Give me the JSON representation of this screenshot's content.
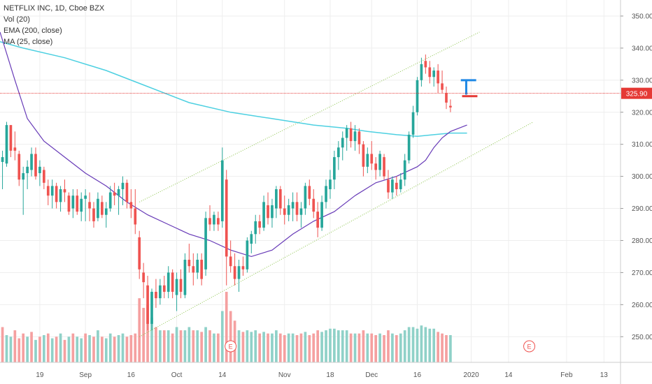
{
  "legend": {
    "title": "NETFLIX INC, 1D, Cboe BZX",
    "vol": "Vol (20)",
    "ema": "EMA (200, close)",
    "ma": "MA (25, close)"
  },
  "price_label": "325.90",
  "colors": {
    "up": "#26a69a",
    "down": "#ef5350",
    "vol_up": "#8fd1c8",
    "vol_down": "#f5a0a0",
    "ema": "#4dd0e1",
    "ma": "#673ab7",
    "trend": "#8bc34a",
    "price_line": "#e53935",
    "grid": "#eeeeee",
    "marker_blue": "#1e88e5",
    "marker_red": "#e53935"
  },
  "chart_data": {
    "type": "candlestick",
    "ylim": [
      242,
      355
    ],
    "yticks": [
      250,
      260,
      270,
      280,
      290,
      300,
      310,
      320,
      330,
      340,
      350
    ],
    "ytick_labels": [
      "250.00",
      "260.00",
      "270.00",
      "280.00",
      "290.00",
      "300.00",
      "310.00",
      "320.00",
      "330.00",
      "340.00",
      "350.00"
    ],
    "xticks": [
      {
        "i": 9,
        "label": "19"
      },
      {
        "i": 20,
        "label": "Sep"
      },
      {
        "i": 31,
        "label": "16"
      },
      {
        "i": 42,
        "label": "Oct"
      },
      {
        "i": 53,
        "label": "14"
      },
      {
        "i": 68,
        "label": "Nov"
      },
      {
        "i": 79,
        "label": "18"
      },
      {
        "i": 89,
        "label": "Dec"
      },
      {
        "i": 100,
        "label": "16"
      },
      {
        "i": 113,
        "label": "2020"
      },
      {
        "i": 122,
        "label": "14"
      },
      {
        "i": 136,
        "label": "Feb"
      },
      {
        "i": 145,
        "label": "13"
      }
    ],
    "index_range": [
      -0.6,
      149
    ],
    "candles": [
      [
        304.5,
        308,
        296,
        306
      ],
      [
        304,
        317,
        303,
        316
      ],
      [
        316,
        316,
        306,
        308
      ],
      [
        309,
        314,
        305,
        308
      ],
      [
        307,
        308,
        297,
        299
      ],
      [
        299,
        303,
        288,
        301
      ],
      [
        301,
        305,
        296,
        303
      ],
      [
        302,
        309,
        300,
        307
      ],
      [
        307,
        309,
        299,
        300
      ],
      [
        301,
        305,
        297,
        303
      ],
      [
        302,
        303,
        296,
        298
      ],
      [
        297,
        299,
        291,
        294
      ],
      [
        294,
        299,
        290,
        297
      ],
      [
        297,
        298,
        290,
        292
      ],
      [
        292,
        297,
        289,
        296
      ],
      [
        296,
        299,
        292,
        295
      ],
      [
        294,
        295,
        288,
        289
      ],
      [
        290,
        296,
        287,
        294
      ],
      [
        294,
        296,
        288,
        289
      ],
      [
        289,
        295,
        286,
        293
      ],
      [
        293,
        296,
        286,
        294
      ],
      [
        292,
        295,
        286,
        290
      ],
      [
        290,
        292,
        284,
        286
      ],
      [
        287,
        295,
        286,
        293
      ],
      [
        292,
        294,
        287,
        288
      ],
      [
        288,
        292,
        284,
        290
      ],
      [
        290,
        297,
        289,
        295
      ],
      [
        295,
        298,
        291,
        294
      ],
      [
        294,
        297,
        288,
        296
      ],
      [
        296,
        300,
        291,
        298
      ],
      [
        298,
        299,
        290,
        292
      ],
      [
        292,
        296,
        287,
        290
      ],
      [
        290,
        296,
        282,
        285
      ],
      [
        281,
        283,
        268,
        271
      ],
      [
        270,
        273,
        262,
        267
      ],
      [
        266,
        269,
        252,
        254
      ],
      [
        254,
        265,
        252,
        264
      ],
      [
        264,
        268,
        259,
        262
      ],
      [
        262,
        268,
        260,
        266
      ],
      [
        266,
        269,
        262,
        264
      ],
      [
        264,
        272,
        262,
        270
      ],
      [
        270,
        271,
        262,
        264
      ],
      [
        263,
        270,
        258,
        268
      ],
      [
        268,
        271,
        262,
        264
      ],
      [
        263,
        276,
        262,
        274
      ],
      [
        274,
        279,
        270,
        272
      ],
      [
        272,
        276,
        266,
        270
      ],
      [
        270,
        276,
        268,
        274
      ],
      [
        274,
        276,
        266,
        268
      ],
      [
        271,
        289,
        269,
        287
      ],
      [
        287,
        291,
        283,
        285
      ],
      [
        285,
        289,
        283,
        288
      ],
      [
        287,
        289,
        283,
        285
      ],
      [
        286,
        309,
        284,
        305
      ],
      [
        299,
        302,
        266,
        275
      ],
      [
        275,
        280,
        270,
        272
      ],
      [
        272,
        276,
        266,
        268
      ],
      [
        268,
        274,
        264,
        272
      ],
      [
        272,
        275,
        269,
        271
      ],
      [
        271,
        281,
        270,
        280
      ],
      [
        279,
        283,
        276,
        282
      ],
      [
        282,
        288,
        279,
        286
      ],
      [
        286,
        288,
        282,
        284
      ],
      [
        284,
        294,
        283,
        292
      ],
      [
        291,
        295,
        285,
        287
      ],
      [
        287,
        293,
        284,
        291
      ],
      [
        290,
        297,
        287,
        296
      ],
      [
        296,
        297,
        288,
        290
      ],
      [
        290,
        294,
        285,
        288
      ],
      [
        288,
        293,
        286,
        291
      ],
      [
        290,
        295,
        286,
        292
      ],
      [
        292,
        295,
        286,
        288
      ],
      [
        288,
        292,
        284,
        290
      ],
      [
        290,
        298,
        288,
        297
      ],
      [
        297,
        299,
        291,
        293
      ],
      [
        293,
        296,
        287,
        289
      ],
      [
        289,
        292,
        281,
        284
      ],
      [
        284,
        294,
        283,
        292
      ],
      [
        292,
        299,
        290,
        297
      ],
      [
        296,
        302,
        293,
        299
      ],
      [
        299,
        308,
        296,
        306
      ],
      [
        306,
        311,
        302,
        309
      ],
      [
        309,
        314,
        305,
        312
      ],
      [
        312,
        316,
        308,
        315
      ],
      [
        315,
        317,
        309,
        311
      ],
      [
        311,
        316,
        308,
        314
      ],
      [
        314,
        315,
        307,
        310
      ],
      [
        310,
        311,
        300,
        303
      ],
      [
        303,
        309,
        301,
        307
      ],
      [
        307,
        311,
        302,
        304
      ],
      [
        304,
        306,
        299,
        302
      ],
      [
        302,
        308,
        300,
        307
      ],
      [
        306,
        307,
        299,
        300
      ],
      [
        299,
        302,
        293,
        295
      ],
      [
        295,
        300,
        293,
        299
      ],
      [
        298,
        300,
        294,
        296
      ],
      [
        296,
        301,
        295,
        299
      ],
      [
        299,
        307,
        297,
        305
      ],
      [
        305,
        314,
        304,
        313
      ],
      [
        313,
        322,
        312,
        320
      ],
      [
        320,
        331,
        319,
        330
      ],
      [
        330,
        337,
        328,
        335
      ],
      [
        336,
        338,
        332,
        334
      ],
      [
        334,
        336,
        329,
        331
      ],
      [
        331,
        334,
        328,
        333
      ],
      [
        333,
        335,
        326,
        329
      ],
      [
        329,
        333,
        326,
        327
      ],
      [
        326,
        328,
        321,
        323
      ],
      [
        322,
        324,
        320,
        321.5
      ]
    ],
    "volumes": [
      [
        253,
        "down"
      ],
      [
        250.5,
        "up"
      ],
      [
        250,
        "up"
      ],
      [
        252,
        "down"
      ],
      [
        249.5,
        "down"
      ],
      [
        251,
        "down"
      ],
      [
        250,
        "up"
      ],
      [
        251.5,
        "down"
      ],
      [
        249,
        "up"
      ],
      [
        250,
        "down"
      ],
      [
        250.5,
        "up"
      ],
      [
        251,
        "down"
      ],
      [
        249.5,
        "up"
      ],
      [
        250,
        "down"
      ],
      [
        251,
        "up"
      ],
      [
        249,
        "down"
      ],
      [
        250,
        "up"
      ],
      [
        251,
        "down"
      ],
      [
        250,
        "up"
      ],
      [
        249.5,
        "up"
      ],
      [
        251,
        "down"
      ],
      [
        250.5,
        "up"
      ],
      [
        250,
        "down"
      ],
      [
        252,
        "up"
      ],
      [
        250,
        "down"
      ],
      [
        249.5,
        "up"
      ],
      [
        251,
        "up"
      ],
      [
        250,
        "down"
      ],
      [
        250.5,
        "up"
      ],
      [
        251,
        "up"
      ],
      [
        250,
        "down"
      ],
      [
        250.5,
        "down"
      ],
      [
        251,
        "down"
      ],
      [
        262,
        "down"
      ],
      [
        259,
        "down"
      ],
      [
        260,
        "down"
      ],
      [
        256,
        "up"
      ],
      [
        253,
        "down"
      ],
      [
        252,
        "up"
      ],
      [
        252,
        "down"
      ],
      [
        252,
        "up"
      ],
      [
        251,
        "down"
      ],
      [
        253,
        "up"
      ],
      [
        252,
        "down"
      ],
      [
        252,
        "up"
      ],
      [
        253,
        "up"
      ],
      [
        252,
        "down"
      ],
      [
        252,
        "up"
      ],
      [
        251.5,
        "down"
      ],
      [
        253,
        "up"
      ],
      [
        252,
        "down"
      ],
      [
        251,
        "up"
      ],
      [
        251,
        "down"
      ],
      [
        258,
        "up"
      ],
      [
        264,
        "down"
      ],
      [
        258,
        "down"
      ],
      [
        255,
        "down"
      ],
      [
        252,
        "up"
      ],
      [
        251.5,
        "down"
      ],
      [
        252,
        "up"
      ],
      [
        251.5,
        "up"
      ],
      [
        252,
        "up"
      ],
      [
        251,
        "down"
      ],
      [
        251.5,
        "up"
      ],
      [
        251,
        "down"
      ],
      [
        251,
        "up"
      ],
      [
        252,
        "up"
      ],
      [
        251,
        "down"
      ],
      [
        250.5,
        "down"
      ],
      [
        251,
        "up"
      ],
      [
        251,
        "up"
      ],
      [
        250.5,
        "down"
      ],
      [
        251,
        "down"
      ],
      [
        251.5,
        "up"
      ],
      [
        250.5,
        "down"
      ],
      [
        251,
        "down"
      ],
      [
        252,
        "down"
      ],
      [
        251.5,
        "up"
      ],
      [
        252,
        "up"
      ],
      [
        252.5,
        "up"
      ],
      [
        252.5,
        "up"
      ],
      [
        252,
        "up"
      ],
      [
        252,
        "up"
      ],
      [
        252,
        "up"
      ],
      [
        251,
        "down"
      ],
      [
        251,
        "up"
      ],
      [
        251,
        "down"
      ],
      [
        252,
        "down"
      ],
      [
        251,
        "up"
      ],
      [
        251,
        "down"
      ],
      [
        250.5,
        "down"
      ],
      [
        251,
        "up"
      ],
      [
        250.5,
        "down"
      ],
      [
        252,
        "down"
      ],
      [
        251,
        "up"
      ],
      [
        250.5,
        "down"
      ],
      [
        251,
        "up"
      ],
      [
        252,
        "up"
      ],
      [
        253,
        "up"
      ],
      [
        253,
        "up"
      ],
      [
        252.5,
        "up"
      ],
      [
        253.5,
        "up"
      ],
      [
        253,
        "up"
      ],
      [
        252.5,
        "up"
      ],
      [
        252.5,
        "up"
      ],
      [
        251.5,
        "down"
      ],
      [
        251,
        "down"
      ],
      [
        250.5,
        "down"
      ],
      [
        250.5,
        "up"
      ]
    ],
    "ema": [
      [
        -0.6,
        342
      ],
      [
        5,
        340
      ],
      [
        15,
        337
      ],
      [
        25,
        333
      ],
      [
        35,
        328
      ],
      [
        45,
        323
      ],
      [
        55,
        320
      ],
      [
        65,
        318
      ],
      [
        75,
        316
      ],
      [
        83,
        315
      ],
      [
        88,
        314
      ],
      [
        95,
        313
      ],
      [
        100,
        312.5
      ],
      [
        104,
        313
      ],
      [
        108,
        313.5
      ],
      [
        112,
        313.5
      ]
    ],
    "ma": [
      [
        -0.6,
        345
      ],
      [
        3,
        330
      ],
      [
        6,
        318
      ],
      [
        10,
        311
      ],
      [
        15,
        306
      ],
      [
        20,
        301
      ],
      [
        25,
        297
      ],
      [
        30,
        292
      ],
      [
        35,
        288
      ],
      [
        40,
        285
      ],
      [
        45,
        282
      ],
      [
        50,
        280
      ],
      [
        55,
        277
      ],
      [
        60,
        275
      ],
      [
        65,
        277
      ],
      [
        70,
        282
      ],
      [
        75,
        286
      ],
      [
        80,
        289
      ],
      [
        85,
        294
      ],
      [
        90,
        298
      ],
      [
        95,
        300
      ],
      [
        100,
        303
      ],
      [
        102,
        305
      ],
      [
        104,
        309
      ],
      [
        106,
        312
      ],
      [
        108,
        314
      ],
      [
        112,
        316
      ]
    ],
    "trend_upper": [
      [
        33,
        292
      ],
      [
        115,
        345
      ]
    ],
    "trend_lower": [
      [
        33,
        250
      ],
      [
        128,
        317
      ]
    ],
    "price_line": 325.9,
    "markers": [
      {
        "type": "blue_bar",
        "i0": 110.5,
        "i1": 114.2,
        "y": 330
      },
      {
        "type": "blue_stem",
        "i": 111.8,
        "y0": 325.5,
        "y1": 330
      },
      {
        "type": "red_bar",
        "i0": 110.8,
        "i1": 114.5,
        "y": 325
      }
    ],
    "events": [
      {
        "i": 55,
        "label": "E"
      },
      {
        "i": 127,
        "label": "E"
      }
    ]
  }
}
